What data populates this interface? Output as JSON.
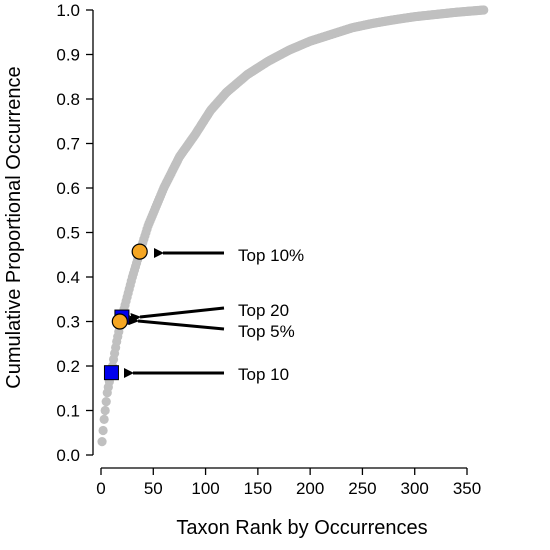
{
  "chart_data": {
    "type": "scatter",
    "xlabel": "Taxon Rank by Occurrences",
    "ylabel": "Cumulative Proportional Occurrence",
    "xlim": [
      0,
      370
    ],
    "ylim": [
      0.0,
      1.0
    ],
    "x_ticks": [
      0,
      50,
      100,
      150,
      200,
      250,
      300,
      350
    ],
    "y_ticks": [
      "0.0",
      "0.1",
      "0.2",
      "0.3",
      "0.4",
      "0.5",
      "0.6",
      "0.7",
      "0.8",
      "0.9",
      "1.0"
    ],
    "grid": false,
    "legend": "none",
    "curve": {
      "color": "#c0c0c0",
      "x_range": [
        1,
        366
      ],
      "points": [
        [
          1,
          0.03
        ],
        [
          2,
          0.055
        ],
        [
          3,
          0.08
        ],
        [
          4,
          0.1
        ],
        [
          5,
          0.12
        ],
        [
          6,
          0.14
        ],
        [
          8,
          0.165
        ],
        [
          10,
          0.185
        ],
        [
          12,
          0.215
        ],
        [
          15,
          0.255
        ],
        [
          20,
          0.31
        ],
        [
          25,
          0.355
        ],
        [
          30,
          0.4
        ],
        [
          37,
          0.455
        ],
        [
          45,
          0.515
        ],
        [
          60,
          0.6
        ],
        [
          75,
          0.67
        ],
        [
          90,
          0.72
        ],
        [
          105,
          0.775
        ],
        [
          120,
          0.815
        ],
        [
          140,
          0.855
        ],
        [
          160,
          0.885
        ],
        [
          180,
          0.91
        ],
        [
          200,
          0.93
        ],
        [
          220,
          0.945
        ],
        [
          240,
          0.96
        ],
        [
          260,
          0.97
        ],
        [
          280,
          0.978
        ],
        [
          300,
          0.985
        ],
        [
          320,
          0.99
        ],
        [
          340,
          0.995
        ],
        [
          366,
          1.0
        ]
      ]
    },
    "highlights": [
      {
        "label": "Top 10",
        "x": 10,
        "y": 0.185,
        "marker": "square",
        "color": "#0000ee"
      },
      {
        "label": "Top 20",
        "x": 20,
        "y": 0.31,
        "marker": "square",
        "color": "#0000ee"
      },
      {
        "label": "Top 5%",
        "x": 18,
        "y": 0.3,
        "marker": "circle",
        "color": "#f5a623"
      },
      {
        "label": "Top 10%",
        "x": 37,
        "y": 0.457,
        "marker": "circle",
        "color": "#f5a623"
      }
    ]
  }
}
